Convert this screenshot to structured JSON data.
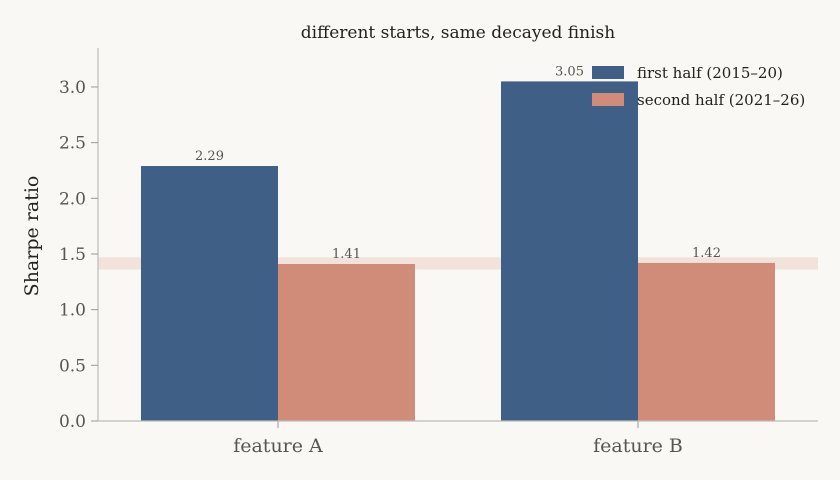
{
  "chart_data": {
    "type": "bar",
    "title": "different starts, same decayed finish",
    "xlabel": "",
    "ylabel": "Sharpe ratio",
    "categories": [
      "feature A",
      "feature B"
    ],
    "series": [
      {
        "name": "first half (2015–20)",
        "values": [
          2.29,
          3.05
        ],
        "labels": [
          "2.29",
          "3.05"
        ],
        "color": "#3f5f86"
      },
      {
        "name": "second half (2021–26)",
        "values": [
          1.41,
          1.42
        ],
        "labels": [
          "1.41",
          "1.42"
        ],
        "color": "#d08c78"
      }
    ],
    "ylim": [
      0,
      3.35
    ],
    "yticks": [
      0.0,
      0.5,
      1.0,
      1.5,
      2.0,
      2.5,
      3.0
    ],
    "ytick_labels": [
      "0.0",
      "0.5",
      "1.0",
      "1.5",
      "2.0",
      "2.5",
      "3.0"
    ],
    "reference_band": {
      "from": 1.36,
      "to": 1.47,
      "color": "#f1e3dc"
    },
    "grid": false,
    "legend_position": "top-right"
  }
}
